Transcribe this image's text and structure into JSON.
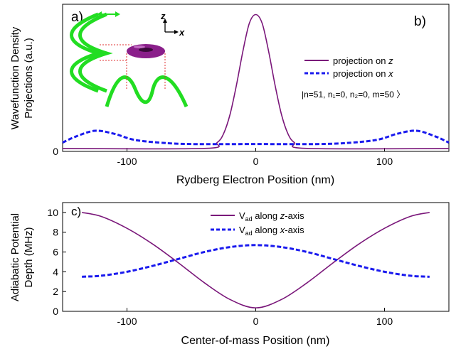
{
  "panels": {
    "a": "a)",
    "b": "b)",
    "c": "c)"
  },
  "colors": {
    "purple": "#7a177a",
    "blue": "#1a1aee",
    "green": "#22dd22",
    "guide": "#e03030",
    "torus": "#8a1f8a"
  },
  "inset": {
    "z_axis": "z",
    "x_axis": "x",
    "icon": "torus-wavefunction-illustration"
  },
  "chart_data": [
    {
      "type": "line",
      "panel": "top",
      "xlabel": "Rydberg Electron Position (nm)",
      "ylabel": [
        "Wavefunction Density",
        "Projections (a.u.)"
      ],
      "xlim": [
        -150,
        150
      ],
      "ylim": [
        0,
        1
      ],
      "x_ticks": [
        -100,
        0,
        100
      ],
      "y_ticks": [
        0
      ],
      "state_label": "|n=51, n₁=0, n₂=0, m=50 〉",
      "legend_position": "right",
      "series": [
        {
          "name": "projection on z",
          "name_prefix": "projection on ",
          "name_var": "z",
          "style": "solid",
          "x": [
            -150,
            -40,
            -30,
            -25,
            -20,
            -15,
            -10,
            -5,
            0,
            5,
            10,
            15,
            20,
            25,
            30,
            40,
            150
          ],
          "y": [
            0.02,
            0.02,
            0.06,
            0.12,
            0.25,
            0.45,
            0.68,
            0.87,
            0.93,
            0.87,
            0.68,
            0.45,
            0.25,
            0.12,
            0.06,
            0.02,
            0.02
          ]
        },
        {
          "name": "projection on x",
          "name_prefix": "projection on ",
          "name_var": "x",
          "style": "dashed",
          "x": [
            -150,
            -140,
            -125,
            -110,
            -95,
            -75,
            -50,
            0,
            50,
            75,
            95,
            110,
            125,
            140,
            150
          ],
          "y": [
            0.06,
            0.1,
            0.14,
            0.12,
            0.08,
            0.06,
            0.05,
            0.05,
            0.05,
            0.06,
            0.08,
            0.12,
            0.14,
            0.1,
            0.06
          ]
        }
      ]
    },
    {
      "type": "line",
      "panel": "bottom",
      "xlabel": "Center-of-mass Position (nm)",
      "ylabel": [
        "Adiabatic Potential",
        "Depth (MHz)"
      ],
      "xlim": [
        -150,
        150
      ],
      "ylim": [
        0,
        11
      ],
      "x_ticks": [
        -100,
        0,
        100
      ],
      "y_ticks": [
        0,
        2,
        4,
        6,
        8,
        10
      ],
      "legend_position": "top-center",
      "series": [
        {
          "name": "Vad along z-axis",
          "name_main": "V",
          "name_sub": "ad",
          "name_rest": " along ",
          "name_var": "z",
          "name_tail": "-axis",
          "style": "solid",
          "x": [
            -135,
            -120,
            -100,
            -80,
            -60,
            -40,
            -20,
            0,
            20,
            40,
            60,
            80,
            100,
            120,
            135
          ],
          "y": [
            10.0,
            9.6,
            8.4,
            6.8,
            4.9,
            2.9,
            1.2,
            0.35,
            1.2,
            2.9,
            4.9,
            6.8,
            8.4,
            9.6,
            10.0
          ]
        },
        {
          "name": "Vad along x-axis",
          "name_main": "V",
          "name_sub": "ad",
          "name_rest": " along ",
          "name_var": "x",
          "name_tail": "-axis",
          "style": "dashed",
          "x": [
            -135,
            -120,
            -100,
            -80,
            -60,
            -40,
            -20,
            0,
            20,
            40,
            60,
            80,
            100,
            120,
            135
          ],
          "y": [
            3.5,
            3.6,
            4.0,
            4.6,
            5.3,
            6.0,
            6.5,
            6.7,
            6.5,
            6.0,
            5.3,
            4.6,
            4.0,
            3.6,
            3.5
          ]
        }
      ]
    }
  ]
}
